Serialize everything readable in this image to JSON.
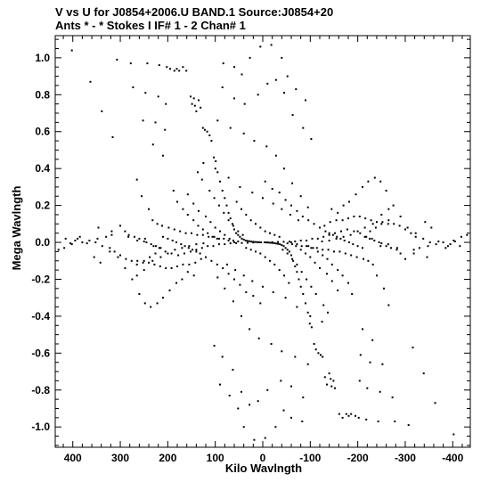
{
  "header": {
    "line1": "V vs U for J0854+2006.U BAND.1   Source:J0854+20",
    "line2": "Ants * - *     Stokes I   IF# 1 - 2  Chan# 1"
  },
  "colors": {
    "background": "#ffffff",
    "foreground": "#000000"
  },
  "chart_data": {
    "type": "scatter",
    "title": "V vs U for J0854+2006.U BAND.1   Source:J0854+20",
    "subtitle": "Ants * - *     Stokes I   IF# 1 - 2  Chan# 1",
    "xlabel": "Kilo Wavlngth",
    "ylabel": "Mega Wavlngth",
    "x_reversed": true,
    "xlim": [
      437,
      -437
    ],
    "ylim": [
      -1.11,
      1.12
    ],
    "x_ticks": [
      400,
      300,
      200,
      100,
      0,
      -100,
      -200,
      -300,
      -400
    ],
    "x_tick_labels": [
      "400",
      "300",
      "200",
      "100",
      "0",
      "-100",
      "-200",
      "-300",
      "-400"
    ],
    "y_ticks": [
      1.0,
      0.8,
      0.6,
      0.4,
      0.2,
      0.0,
      -0.2,
      -0.4,
      -0.6,
      -0.8,
      -1.0
    ],
    "y_tick_labels": [
      "1.0",
      "0.8",
      "0.6",
      "0.4",
      "0.2",
      "0.0",
      "-0.2",
      "-0.4",
      "-0.6",
      "-0.8",
      "-1.0"
    ],
    "grid": false,
    "marker": "dot",
    "symmetric_about_origin": true,
    "x_unit_scale_note": "",
    "points_half": [
      [
        402,
        1.04
      ],
      [
        363,
        0.87
      ],
      [
        339,
        0.71
      ],
      [
        316,
        0.57
      ],
      [
        307,
        0.99
      ],
      [
        278,
        0.97
      ],
      [
        273,
        0.84
      ],
      [
        252,
        0.66
      ],
      [
        247,
        0.81
      ],
      [
        243,
        0.97
      ],
      [
        231,
        0.53
      ],
      [
        226,
        0.65
      ],
      [
        220,
        0.79
      ],
      [
        218,
        0.96
      ],
      [
        210,
        0.47
      ],
      [
        206,
        0.61
      ],
      [
        204,
        0.75
      ],
      [
        202,
        0.95
      ],
      [
        195,
        0.94
      ],
      [
        186,
        0.93
      ],
      [
        181,
        0.94
      ],
      [
        176,
        0.93
      ],
      [
        168,
        0.95
      ],
      [
        161,
        0.93
      ],
      [
        152,
        0.79
      ],
      [
        149,
        0.75
      ],
      [
        145,
        0.78
      ],
      [
        143,
        0.74
      ],
      [
        140,
        0.71
      ],
      [
        135,
        0.77
      ],
      [
        131,
        0.73
      ],
      [
        126,
        0.62
      ],
      [
        122,
        0.61
      ],
      [
        117,
        0.6
      ],
      [
        112,
        0.58
      ],
      [
        108,
        0.55
      ],
      [
        103,
        0.46
      ],
      [
        99,
        0.44
      ],
      [
        95,
        0.38
      ],
      [
        90,
        0.33
      ],
      [
        85,
        0.28
      ],
      [
        80,
        0.24
      ],
      [
        76,
        0.2
      ],
      [
        72,
        0.16
      ],
      [
        68,
        0.13
      ],
      [
        64,
        0.1
      ],
      [
        60,
        0.07
      ],
      [
        56,
        0.05
      ],
      [
        52,
        0.04
      ],
      [
        48,
        0.03
      ],
      [
        44,
        0.02
      ],
      [
        40,
        0.015
      ],
      [
        36,
        0.01
      ],
      [
        32,
        0.008
      ],
      [
        28,
        0.006
      ],
      [
        24,
        0.004
      ],
      [
        20,
        0.003
      ],
      [
        16,
        0.002
      ],
      [
        12,
        0.001
      ],
      [
        8,
        0.001
      ],
      [
        83,
        0.97
      ],
      [
        60,
        0.95
      ],
      [
        44,
        0.91
      ],
      [
        27,
        1.0
      ],
      [
        5,
        1.06
      ],
      [
        -18,
        1.07
      ],
      [
        -40,
        1.0
      ],
      [
        -52,
        0.9
      ],
      [
        -70,
        0.83
      ],
      [
        -90,
        0.77
      ],
      [
        85,
        0.84
      ],
      [
        60,
        0.78
      ],
      [
        38,
        0.75
      ],
      [
        10,
        0.8
      ],
      [
        -10,
        0.86
      ],
      [
        -28,
        0.88
      ],
      [
        -45,
        0.81
      ],
      [
        -63,
        0.69
      ],
      [
        -85,
        0.62
      ],
      [
        -102,
        0.56
      ],
      [
        95,
        0.66
      ],
      [
        68,
        0.62
      ],
      [
        40,
        0.59
      ],
      [
        18,
        0.55
      ],
      [
        -8,
        0.52
      ],
      [
        -28,
        0.47
      ],
      [
        -45,
        0.4
      ],
      [
        -62,
        0.32
      ],
      [
        -80,
        0.25
      ],
      [
        -95,
        0.19
      ],
      [
        125,
        0.43
      ],
      [
        100,
        0.4
      ],
      [
        72,
        0.35
      ],
      [
        48,
        0.3
      ],
      [
        22,
        0.27
      ],
      [
        0,
        0.24
      ],
      [
        -22,
        0.21
      ],
      [
        -40,
        0.18
      ],
      [
        -58,
        0.15
      ],
      [
        -75,
        0.12
      ],
      [
        265,
        0.34
      ],
      [
        255,
        0.25
      ],
      [
        240,
        0.18
      ],
      [
        232,
        0.12
      ],
      [
        222,
        0.1
      ],
      [
        212,
        0.09
      ],
      [
        198,
        0.08
      ],
      [
        186,
        0.07
      ],
      [
        174,
        0.06
      ],
      [
        162,
        0.05
      ],
      [
        150,
        0.05
      ],
      [
        138,
        0.04
      ],
      [
        126,
        0.04
      ],
      [
        114,
        0.03
      ],
      [
        102,
        0.03
      ],
      [
        92,
        0.02
      ],
      [
        82,
        0.02
      ],
      [
        72,
        0.01
      ],
      [
        62,
        0.01
      ],
      [
        52,
        0.005
      ],
      [
        300,
        0.09
      ],
      [
        290,
        0.06
      ],
      [
        282,
        0.04
      ],
      [
        270,
        0.03
      ],
      [
        260,
        0.02
      ],
      [
        250,
        0.005
      ],
      [
        245,
        0.0
      ],
      [
        235,
        -0.01
      ],
      [
        225,
        -0.02
      ],
      [
        215,
        -0.03
      ],
      [
        210,
        0.03
      ],
      [
        200,
        0.02
      ],
      [
        190,
        0.01
      ],
      [
        182,
        0.0
      ],
      [
        172,
        -0.01
      ],
      [
        164,
        -0.02
      ],
      [
        156,
        -0.03
      ],
      [
        148,
        -0.04
      ],
      [
        140,
        -0.05
      ],
      [
        132,
        -0.06
      ],
      [
        188,
        0.28
      ],
      [
        180,
        0.22
      ],
      [
        168,
        0.18
      ],
      [
        158,
        0.15
      ],
      [
        146,
        0.12
      ],
      [
        136,
        0.09
      ],
      [
        126,
        0.07
      ],
      [
        116,
        0.05
      ],
      [
        106,
        0.03
      ],
      [
        96,
        0.02
      ],
      [
        158,
        0.26
      ],
      [
        146,
        0.21
      ],
      [
        135,
        0.17
      ],
      [
        120,
        0.14
      ],
      [
        110,
        0.11
      ],
      [
        100,
        0.08
      ],
      [
        90,
        0.06
      ],
      [
        80,
        0.04
      ],
      [
        70,
        0.02
      ],
      [
        60,
        0.0
      ],
      [
        137,
        0.38
      ],
      [
        128,
        0.34
      ],
      [
        112,
        0.28
      ],
      [
        102,
        0.24
      ],
      [
        92,
        0.2
      ],
      [
        82,
        0.16
      ],
      [
        72,
        0.12
      ],
      [
        62,
        0.09
      ],
      [
        52,
        0.06
      ],
      [
        42,
        0.04
      ],
      [
        -5,
        0.33
      ],
      [
        -20,
        0.29
      ],
      [
        -35,
        0.27
      ],
      [
        -48,
        0.23
      ],
      [
        -60,
        0.2
      ],
      [
        -72,
        0.17
      ],
      [
        -84,
        0.14
      ],
      [
        -96,
        0.12
      ],
      [
        -108,
        0.1
      ],
      [
        -120,
        0.08
      ],
      [
        55,
        0.22
      ],
      [
        45,
        0.18
      ],
      [
        35,
        0.15
      ],
      [
        25,
        0.12
      ],
      [
        15,
        0.1
      ],
      [
        5,
        0.08
      ],
      [
        -5,
        0.06
      ],
      [
        -15,
        0.05
      ],
      [
        -25,
        0.04
      ],
      [
        -35,
        0.03
      ],
      [
        -130,
        0.09
      ],
      [
        -142,
        0.11
      ],
      [
        -155,
        0.12
      ],
      [
        -168,
        0.12
      ],
      [
        -180,
        0.13
      ],
      [
        -192,
        0.14
      ],
      [
        -204,
        0.14
      ],
      [
        -216,
        0.13
      ],
      [
        -228,
        0.12
      ],
      [
        -240,
        0.11
      ],
      [
        -252,
        0.11
      ],
      [
        -264,
        0.1
      ],
      [
        -276,
        0.1
      ],
      [
        -288,
        0.09
      ],
      [
        -300,
        0.07
      ],
      [
        -312,
        0.05
      ],
      [
        -322,
        0.03
      ],
      [
        -338,
        0.02
      ],
      [
        -352,
        0.0
      ],
      [
        -370,
        0.005
      ],
      [
        -395,
        -0.01
      ],
      [
        -430,
        0.04
      ],
      [
        -405,
        0.005
      ],
      [
        -415,
        -0.02
      ],
      [
        -385,
        -0.03
      ],
      [
        -346,
        -0.08
      ],
      [
        -318,
        -0.06
      ],
      [
        -283,
        -0.03
      ],
      [
        -264,
        -0.01
      ],
      [
        -248,
        -0.02
      ],
      [
        -230,
        0.02
      ],
      [
        -218,
        0.03
      ],
      [
        -205,
        0.05
      ],
      [
        -192,
        0.06
      ],
      [
        -178,
        0.07
      ],
      [
        -165,
        0.06
      ],
      [
        -152,
        0.05
      ],
      [
        -140,
        0.04
      ],
      [
        -128,
        0.03
      ],
      [
        -116,
        0.02
      ],
      [
        -104,
        0.02
      ],
      [
        -92,
        0.01
      ],
      [
        -80,
        0.01
      ],
      [
        -68,
        0.005
      ],
      [
        -56,
        0.004
      ],
      [
        -44,
        0.003
      ],
      [
        -32,
        0.002
      ],
      [
        -20,
        0.001
      ],
      [
        -8,
        0.0
      ],
      [
        4,
        0.0
      ],
      [
        -145,
        0.18
      ],
      [
        -158,
        0.16
      ],
      [
        -170,
        0.2
      ],
      [
        -182,
        0.22
      ],
      [
        -196,
        0.26
      ],
      [
        -210,
        0.3
      ],
      [
        -222,
        0.33
      ],
      [
        -236,
        0.35
      ],
      [
        -248,
        0.33
      ],
      [
        -260,
        0.28
      ],
      [
        -265,
        0.18
      ],
      [
        -250,
        0.15
      ],
      [
        -232,
        0.1
      ],
      [
        -215,
        0.08
      ],
      [
        -200,
        0.06
      ],
      [
        -185,
        0.04
      ],
      [
        -170,
        0.03
      ],
      [
        -155,
        0.02
      ],
      [
        -140,
        0.01
      ],
      [
        -125,
        0.005
      ],
      [
        355,
        -0.08
      ],
      [
        342,
        -0.11
      ],
      [
        322,
        -0.05
      ],
      [
        305,
        -0.08
      ],
      [
        290,
        -0.14
      ],
      [
        275,
        -0.2
      ],
      [
        265,
        -0.12
      ],
      [
        250,
        -0.1
      ],
      [
        238,
        -0.08
      ],
      [
        226,
        -0.06
      ],
      [
        380,
        0.0
      ],
      [
        418,
        -0.03
      ],
      [
        402,
        -0.01
      ],
      [
        390,
        0.02
      ],
      [
        365,
        0.01
      ],
      [
        348,
        0.02
      ],
      [
        330,
        0.03
      ],
      [
        318,
        0.04
      ]
    ]
  }
}
